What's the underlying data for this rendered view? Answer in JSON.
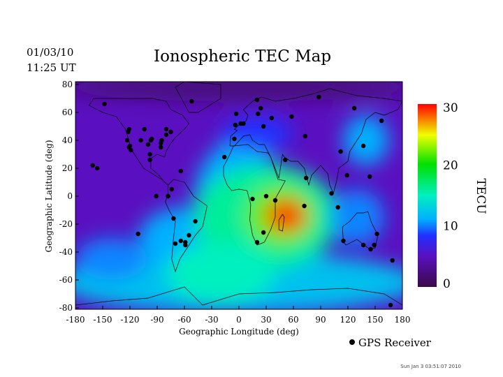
{
  "header": {
    "date": "01/03/10",
    "time": "11:25 UT",
    "title": "Ionospheric TEC Map",
    "timestamp": "Sun Jan  3 03:51:07 2010"
  },
  "legend": {
    "label": "GPS Receiver"
  },
  "chart_data": {
    "type": "heatmap",
    "title": "Ionospheric TEC Map",
    "xlabel": "Geographic Longitude (deg)",
    "ylabel": "Geographic Latitude (deg)",
    "xlim": [
      -180,
      180
    ],
    "ylim": [
      -82,
      82
    ],
    "xticks": [
      "-180",
      "-150",
      "-120",
      "-90",
      "-60",
      "-30",
      "0",
      "30",
      "60",
      "90",
      "120",
      "150",
      "180"
    ],
    "yticks": [
      "80",
      "60",
      "40",
      "20",
      "0",
      "-20",
      "-40",
      "-60",
      "-80"
    ],
    "colorbar": {
      "label": "TECU",
      "range": [
        0,
        30
      ],
      "ticks": [
        "30",
        "20",
        "10",
        "0"
      ]
    },
    "background_tec": 5,
    "tec_features": [
      {
        "lon": 0,
        "lat": -62,
        "rlon": 200,
        "rlat": 22,
        "tec": 12
      },
      {
        "lon": -60,
        "lat": -30,
        "rlon": 50,
        "rlat": 22,
        "tec": 11
      },
      {
        "lon": -140,
        "lat": -45,
        "rlon": 40,
        "rlat": 15,
        "tec": 10
      },
      {
        "lon": 0,
        "lat": -5,
        "rlon": 50,
        "rlat": 45,
        "tec": 11
      },
      {
        "lon": 30,
        "lat": -15,
        "rlon": 80,
        "rlat": 38,
        "tec": 16
      },
      {
        "lon": -20,
        "lat": -55,
        "rlon": 60,
        "rlat": 22,
        "tec": 15
      },
      {
        "lon": 45,
        "lat": -14,
        "rlon": 38,
        "rlat": 22,
        "tec": 22
      },
      {
        "lon": 52,
        "lat": -14,
        "rlon": 22,
        "rlat": 12,
        "tec": 29
      },
      {
        "lon": 140,
        "lat": 40,
        "rlon": 25,
        "rlat": 18,
        "tec": 11
      },
      {
        "lon": 130,
        "lat": -15,
        "rlon": 30,
        "rlat": 20,
        "tec": 10
      },
      {
        "lon": 20,
        "lat": 45,
        "rlon": 40,
        "rlat": 12,
        "tec": 8
      },
      {
        "lon": 0,
        "lat": 78,
        "rlon": 200,
        "rlat": 10,
        "tec": 2
      }
    ],
    "receivers": [
      [
        -148,
        66
      ],
      [
        -121,
        48
      ],
      [
        -122,
        46
      ],
      [
        -123,
        40
      ],
      [
        -120,
        36
      ],
      [
        -121,
        35
      ],
      [
        -119,
        33
      ],
      [
        -108,
        40
      ],
      [
        -104,
        48
      ],
      [
        -100,
        37
      ],
      [
        -97,
        40
      ],
      [
        -96,
        41
      ],
      [
        -98,
        30
      ],
      [
        -98,
        26
      ],
      [
        -86,
        35
      ],
      [
        -86,
        38
      ],
      [
        -85,
        40
      ],
      [
        -80,
        44
      ],
      [
        -75,
        46
      ],
      [
        -80,
        48
      ],
      [
        -52,
        68
      ],
      [
        -161,
        22
      ],
      [
        -156,
        20
      ],
      [
        -64,
        18
      ],
      [
        -74,
        5
      ],
      [
        -91,
        0
      ],
      [
        -78,
        0
      ],
      [
        -72,
        -16
      ],
      [
        -70,
        -34
      ],
      [
        -64,
        -32
      ],
      [
        -59,
        -33
      ],
      [
        -59,
        -35
      ],
      [
        -55,
        -28
      ],
      [
        -48,
        -18
      ],
      [
        -111,
        -27
      ],
      [
        -16,
        28
      ],
      [
        -5,
        41
      ],
      [
        -4,
        51
      ],
      [
        -3,
        59
      ],
      [
        2,
        52
      ],
      [
        5,
        52
      ],
      [
        21,
        59
      ],
      [
        20,
        69
      ],
      [
        24,
        63
      ],
      [
        27,
        50
      ],
      [
        36,
        56
      ],
      [
        58,
        57
      ],
      [
        88,
        71
      ],
      [
        73,
        43
      ],
      [
        51,
        26
      ],
      [
        74,
        13
      ],
      [
        15,
        -2
      ],
      [
        30,
        0
      ],
      [
        40,
        -3
      ],
      [
        27,
        -26
      ],
      [
        20,
        -33
      ],
      [
        72,
        -7
      ],
      [
        102,
        2
      ],
      [
        109,
        -8
      ],
      [
        112,
        32
      ],
      [
        119,
        15
      ],
      [
        127,
        63
      ],
      [
        137,
        36
      ],
      [
        144,
        14
      ],
      [
        157,
        54
      ],
      [
        115,
        -32
      ],
      [
        137,
        -35
      ],
      [
        145,
        -38
      ],
      [
        149,
        -35
      ],
      [
        152,
        -27
      ],
      [
        169,
        -46
      ],
      [
        167,
        -78
      ]
    ]
  }
}
